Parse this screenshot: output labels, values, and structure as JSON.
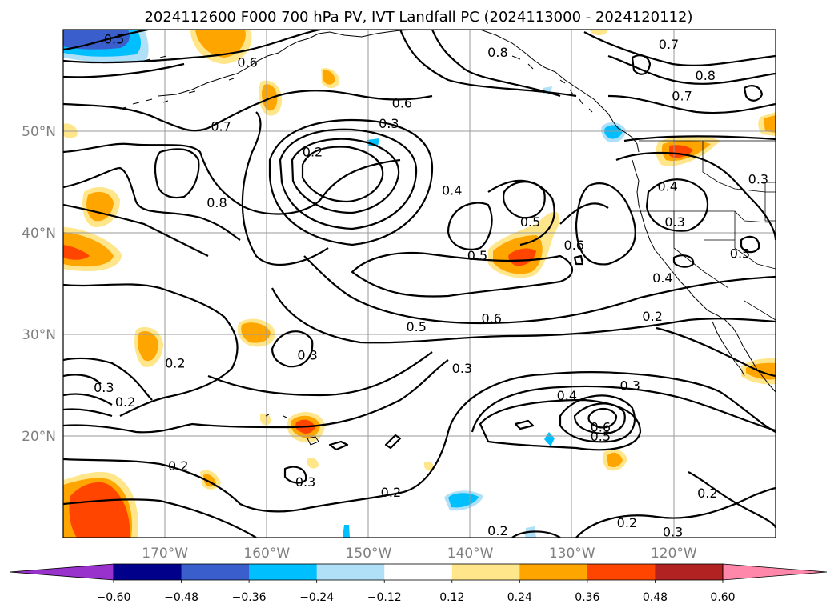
{
  "chart_data": {
    "type": "heatmap",
    "title": "2024112600 F000 700 hPa PV, IVT Landfall PC (2024113000 - 2024120112)",
    "map": {
      "projection": "PlateCarree",
      "lon_range": [
        -180,
        -110
      ],
      "lat_range": [
        10,
        60
      ],
      "grid": true,
      "lon_ticks": [
        {
          "value": -170,
          "label": "170°W"
        },
        {
          "value": -160,
          "label": "160°W"
        },
        {
          "value": -150,
          "label": "150°W"
        },
        {
          "value": -140,
          "label": "140°W"
        },
        {
          "value": -130,
          "label": "130°W"
        },
        {
          "value": -120,
          "label": "120°W"
        }
      ],
      "lat_ticks": [
        {
          "value": 50,
          "label": "50°N"
        },
        {
          "value": 40,
          "label": "40°N"
        },
        {
          "value": 30,
          "label": "30°N"
        },
        {
          "value": 20,
          "label": "20°N"
        }
      ]
    },
    "colorbar": {
      "orientation": "horizontal",
      "extend": "both",
      "tick_labels": [
        "−0.60",
        "−0.48",
        "−0.36",
        "−0.24",
        "−0.12",
        "0.12",
        "0.24",
        "0.36",
        "0.48",
        "0.60"
      ],
      "bins": [
        {
          "range": [
            null,
            -0.6
          ],
          "color": "#9932cc"
        },
        {
          "range": [
            -0.6,
            -0.48
          ],
          "color": "#00008b"
        },
        {
          "range": [
            -0.48,
            -0.36
          ],
          "color": "#3a5fcd"
        },
        {
          "range": [
            -0.36,
            -0.24
          ],
          "color": "#00bfff"
        },
        {
          "range": [
            -0.24,
            -0.12
          ],
          "color": "#afe0f8"
        },
        {
          "range": [
            -0.12,
            0.12
          ],
          "color": "#ffffff"
        },
        {
          "range": [
            0.12,
            0.24
          ],
          "color": "#ffe68a"
        },
        {
          "range": [
            0.24,
            0.36
          ],
          "color": "#ffa500"
        },
        {
          "range": [
            0.36,
            0.48
          ],
          "color": "#ff4500"
        },
        {
          "range": [
            0.48,
            0.6
          ],
          "color": "#b22222"
        },
        {
          "range": [
            0.6,
            null
          ],
          "color": "#ff88aa"
        }
      ]
    },
    "contour_labels": [
      {
        "text": "0.5",
        "lon": -175.0,
        "lat": 59.1
      },
      {
        "text": "0.6",
        "lon": -161.9,
        "lat": 56.8
      },
      {
        "text": "0.7",
        "lon": -164.5,
        "lat": 50.5
      },
      {
        "text": "0.8",
        "lon": -164.9,
        "lat": 43.0
      },
      {
        "text": "0.6",
        "lon": -146.7,
        "lat": 52.8
      },
      {
        "text": "0.3",
        "lon": -148.0,
        "lat": 50.8
      },
      {
        "text": "0.2",
        "lon": -155.5,
        "lat": 48.0
      },
      {
        "text": "0.4",
        "lon": -141.8,
        "lat": 44.2
      },
      {
        "text": "0.8",
        "lon": -137.3,
        "lat": 57.8
      },
      {
        "text": "0.7",
        "lon": -120.5,
        "lat": 58.6
      },
      {
        "text": "0.8",
        "lon": -116.9,
        "lat": 55.5
      },
      {
        "text": "0.7",
        "lon": -119.2,
        "lat": 53.5
      },
      {
        "text": "0.4",
        "lon": -120.6,
        "lat": 44.6
      },
      {
        "text": "0.3",
        "lon": -119.9,
        "lat": 41.1
      },
      {
        "text": "0.3",
        "lon": -111.7,
        "lat": 45.3
      },
      {
        "text": "0.5",
        "lon": -134.1,
        "lat": 41.1
      },
      {
        "text": "0.6",
        "lon": -129.8,
        "lat": 38.8
      },
      {
        "text": "0.5",
        "lon": -139.3,
        "lat": 37.8
      },
      {
        "text": "0.5",
        "lon": -113.5,
        "lat": 38.0
      },
      {
        "text": "0.4",
        "lon": -121.1,
        "lat": 35.6
      },
      {
        "text": "0.6",
        "lon": -137.9,
        "lat": 31.6
      },
      {
        "text": "0.5",
        "lon": -145.3,
        "lat": 30.8
      },
      {
        "text": "0.2",
        "lon": -122.1,
        "lat": 31.8
      },
      {
        "text": "0.3",
        "lon": -140.8,
        "lat": 26.7
      },
      {
        "text": "0.3",
        "lon": -156.0,
        "lat": 28.0
      },
      {
        "text": "0.2",
        "lon": -169.0,
        "lat": 27.2
      },
      {
        "text": "0.3",
        "lon": -176.0,
        "lat": 24.8
      },
      {
        "text": "0.2",
        "lon": -173.9,
        "lat": 23.4
      },
      {
        "text": "0.4",
        "lon": -130.5,
        "lat": 24.0
      },
      {
        "text": "0.3",
        "lon": -124.3,
        "lat": 25.0
      },
      {
        "text": "0.6",
        "lon": -127.2,
        "lat": 20.9
      },
      {
        "text": "0.5",
        "lon": -127.2,
        "lat": 20.0
      },
      {
        "text": "0.2",
        "lon": -168.7,
        "lat": 17.1
      },
      {
        "text": "0.3",
        "lon": -156.2,
        "lat": 15.5
      },
      {
        "text": "0.2",
        "lon": -147.8,
        "lat": 14.5
      },
      {
        "text": "0.2",
        "lon": -116.7,
        "lat": 14.4
      },
      {
        "text": "0.2",
        "lon": -124.6,
        "lat": 11.5
      },
      {
        "text": "0.2",
        "lon": -137.3,
        "lat": 10.7
      },
      {
        "text": "0.3",
        "lon": -120.1,
        "lat": 10.6
      }
    ]
  }
}
